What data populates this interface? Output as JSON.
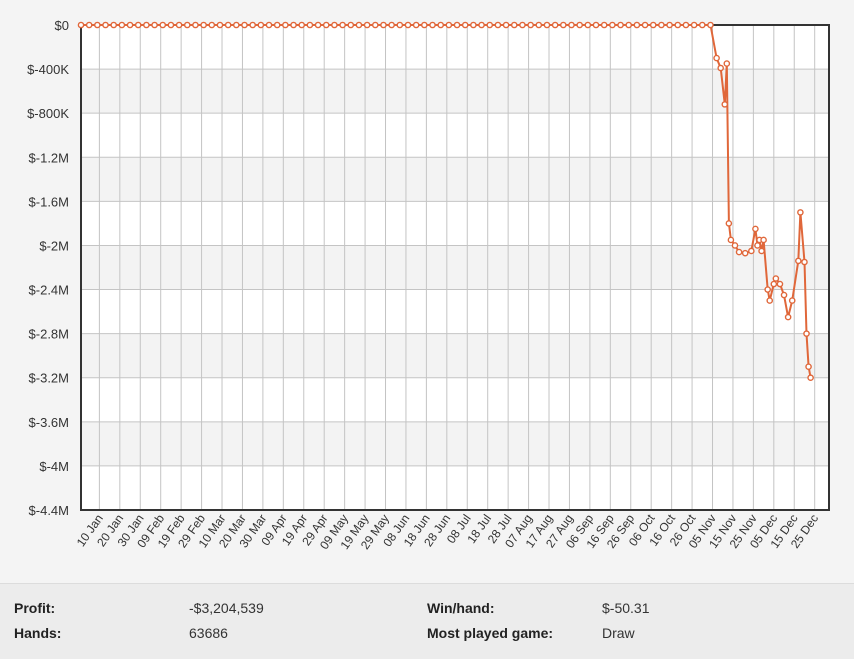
{
  "chart_data": {
    "type": "line",
    "title": "",
    "xlabel": "",
    "ylabel": "",
    "ylim": [
      -4400000,
      0
    ],
    "y_ticks": [
      "$0",
      "$-400K",
      "$-800K",
      "$-1.2M",
      "$-1.6M",
      "$-2M",
      "$-2.4M",
      "$-2.8M",
      "$-3.2M",
      "$-3.6M",
      "$-4M",
      "$-4.4M"
    ],
    "x_ticks": [
      "10 Jan",
      "20 Jan",
      "30 Jan",
      "09 Feb",
      "19 Feb",
      "29 Feb",
      "10 Mar",
      "20 Mar",
      "30 Mar",
      "09 Apr",
      "19 Apr",
      "29 Apr",
      "09 May",
      "19 May",
      "29 May",
      "08 Jun",
      "18 Jun",
      "28 Jun",
      "08 Jul",
      "18 Jul",
      "28 Jul",
      "07 Aug",
      "17 Aug",
      "27 Aug",
      "06 Sep",
      "16 Sep",
      "26 Sep",
      "06 Oct",
      "16 Oct",
      "26 Oct",
      "05 Nov",
      "15 Nov",
      "25 Nov",
      "05 Dec",
      "15 Dec",
      "25 Dec"
    ],
    "grid": true,
    "line_color": "#e0673a",
    "series": [
      {
        "values": [
          [
            "01 Jan",
            0
          ],
          [
            "05 Jan",
            0
          ],
          [
            "09 Jan",
            0
          ],
          [
            "13 Jan",
            0
          ],
          [
            "17 Jan",
            0
          ],
          [
            "21 Jan",
            0
          ],
          [
            "25 Jan",
            0
          ],
          [
            "29 Jan",
            0
          ],
          [
            "02 Feb",
            0
          ],
          [
            "06 Feb",
            0
          ],
          [
            "10 Feb",
            0
          ],
          [
            "14 Feb",
            0
          ],
          [
            "18 Feb",
            0
          ],
          [
            "22 Feb",
            0
          ],
          [
            "26 Feb",
            0
          ],
          [
            "01 Mar",
            0
          ],
          [
            "05 Mar",
            0
          ],
          [
            "09 Mar",
            0
          ],
          [
            "13 Mar",
            0
          ],
          [
            "17 Mar",
            0
          ],
          [
            "21 Mar",
            0
          ],
          [
            "25 Mar",
            0
          ],
          [
            "29 Mar",
            0
          ],
          [
            "02 Apr",
            0
          ],
          [
            "06 Apr",
            0
          ],
          [
            "10 Apr",
            0
          ],
          [
            "14 Apr",
            0
          ],
          [
            "18 Apr",
            0
          ],
          [
            "22 Apr",
            0
          ],
          [
            "26 Apr",
            0
          ],
          [
            "30 Apr",
            0
          ],
          [
            "04 May",
            0
          ],
          [
            "08 May",
            0
          ],
          [
            "12 May",
            0
          ],
          [
            "16 May",
            0
          ],
          [
            "20 May",
            0
          ],
          [
            "24 May",
            0
          ],
          [
            "28 May",
            0
          ],
          [
            "01 Jun",
            0
          ],
          [
            "05 Jun",
            0
          ],
          [
            "09 Jun",
            0
          ],
          [
            "13 Jun",
            0
          ],
          [
            "17 Jun",
            0
          ],
          [
            "21 Jun",
            0
          ],
          [
            "25 Jun",
            0
          ],
          [
            "29 Jun",
            0
          ],
          [
            "03 Jul",
            0
          ],
          [
            "07 Jul",
            0
          ],
          [
            "11 Jul",
            0
          ],
          [
            "15 Jul",
            0
          ],
          [
            "19 Jul",
            0
          ],
          [
            "23 Jul",
            0
          ],
          [
            "27 Jul",
            0
          ],
          [
            "31 Jul",
            0
          ],
          [
            "04 Aug",
            0
          ],
          [
            "08 Aug",
            0
          ],
          [
            "12 Aug",
            0
          ],
          [
            "16 Aug",
            0
          ],
          [
            "20 Aug",
            0
          ],
          [
            "24 Aug",
            0
          ],
          [
            "28 Aug",
            0
          ],
          [
            "01 Sep",
            0
          ],
          [
            "05 Sep",
            0
          ],
          [
            "09 Sep",
            0
          ],
          [
            "13 Sep",
            0
          ],
          [
            "17 Sep",
            0
          ],
          [
            "21 Sep",
            0
          ],
          [
            "25 Sep",
            0
          ],
          [
            "29 Sep",
            0
          ],
          [
            "03 Oct",
            0
          ],
          [
            "07 Oct",
            0
          ],
          [
            "11 Oct",
            0
          ],
          [
            "15 Oct",
            0
          ],
          [
            "19 Oct",
            0
          ],
          [
            "23 Oct",
            0
          ],
          [
            "27 Oct",
            0
          ],
          [
            "31 Oct",
            0
          ],
          [
            "04 Nov",
            0
          ],
          [
            "07 Nov",
            -300000
          ],
          [
            "09 Nov",
            -390000
          ],
          [
            "11 Nov",
            -720000
          ],
          [
            "12 Nov",
            -350000
          ],
          [
            "13 Nov",
            -1800000
          ],
          [
            "14 Nov",
            -1950000
          ],
          [
            "16 Nov",
            -2000000
          ],
          [
            "18 Nov",
            -2060000
          ],
          [
            "21 Nov",
            -2070000
          ],
          [
            "24 Nov",
            -2050000
          ],
          [
            "26 Nov",
            -1850000
          ],
          [
            "27 Nov",
            -2000000
          ],
          [
            "28 Nov",
            -1950000
          ],
          [
            "29 Nov",
            -2050000
          ],
          [
            "30 Nov",
            -1950000
          ],
          [
            "02 Dec",
            -2400000
          ],
          [
            "03 Dec",
            -2500000
          ],
          [
            "05 Dec",
            -2350000
          ],
          [
            "06 Dec",
            -2300000
          ],
          [
            "08 Dec",
            -2350000
          ],
          [
            "10 Dec",
            -2450000
          ],
          [
            "12 Dec",
            -2650000
          ],
          [
            "14 Dec",
            -2500000
          ],
          [
            "17 Dec",
            -2140000
          ],
          [
            "18 Dec",
            -1700000
          ],
          [
            "20 Dec",
            -2150000
          ],
          [
            "21 Dec",
            -2800000
          ],
          [
            "22 Dec",
            -3100000
          ],
          [
            "23 Dec",
            -3200000
          ]
        ]
      }
    ]
  },
  "stats": {
    "profit_label": "Profit:",
    "profit_value": "-$3,204,539",
    "hands_label": "Hands:",
    "hands_value": "63686",
    "winhand_label": "Win/hand:",
    "winhand_value": "$-50.31",
    "game_label": "Most played game:",
    "game_value": "Draw"
  }
}
